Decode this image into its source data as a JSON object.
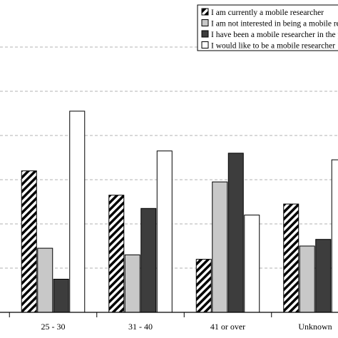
{
  "chart_data": {
    "type": "bar",
    "title": "",
    "xlabel": "",
    "ylabel": "",
    "categories": [
      "",
      "25 - 30",
      "31 - 40",
      "41 or over",
      "Unknown"
    ],
    "ylim": [
      0,
      6
    ],
    "grid": "horizontal-dashed",
    "legend_position": "top-right",
    "series": [
      {
        "name": "I am currently a mobile researcher",
        "fill": "hatch",
        "values": [
          null,
          3.2,
          2.65,
          1.2,
          2.45
        ]
      },
      {
        "name": "I am not interested in being a mobile researcher",
        "fill": "#c8c8c8",
        "values": [
          null,
          1.45,
          1.3,
          2.95,
          1.5
        ]
      },
      {
        "name": "I have been a mobile researcher in the past",
        "fill": "#3d3d3d",
        "values": [
          null,
          0.75,
          2.35,
          3.6,
          1.65
        ]
      },
      {
        "name": "I would like to be a mobile researcher",
        "fill": "#ffffff",
        "values": [
          null,
          4.55,
          3.65,
          2.2,
          3.45
        ]
      }
    ]
  }
}
